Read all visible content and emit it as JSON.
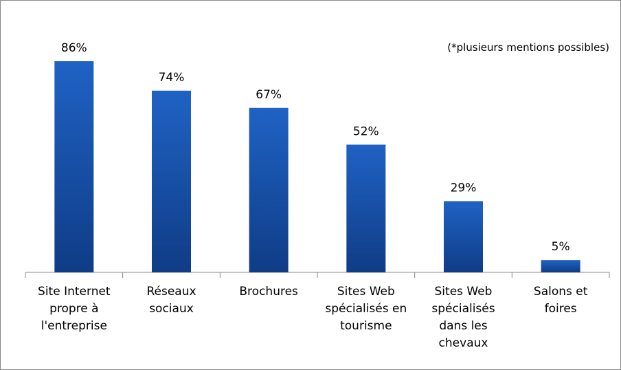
{
  "chart_data": {
    "type": "bar",
    "annotation": "(*plusieurs mentions possibles)",
    "categories": [
      "Site Internet propre à l'entreprise",
      "Réseaux sociaux",
      "Brochures",
      "Sites Web spécialisés en tourisme",
      "Sites Web spécialisés dans les chevaux",
      "Salons et foires"
    ],
    "values": [
      86,
      74,
      67,
      52,
      29,
      5
    ],
    "value_labels": [
      "86%",
      "74%",
      "67%",
      "52%",
      "29%",
      "5%"
    ],
    "color": "#1a56b0",
    "ylim": [
      0,
      100
    ]
  }
}
